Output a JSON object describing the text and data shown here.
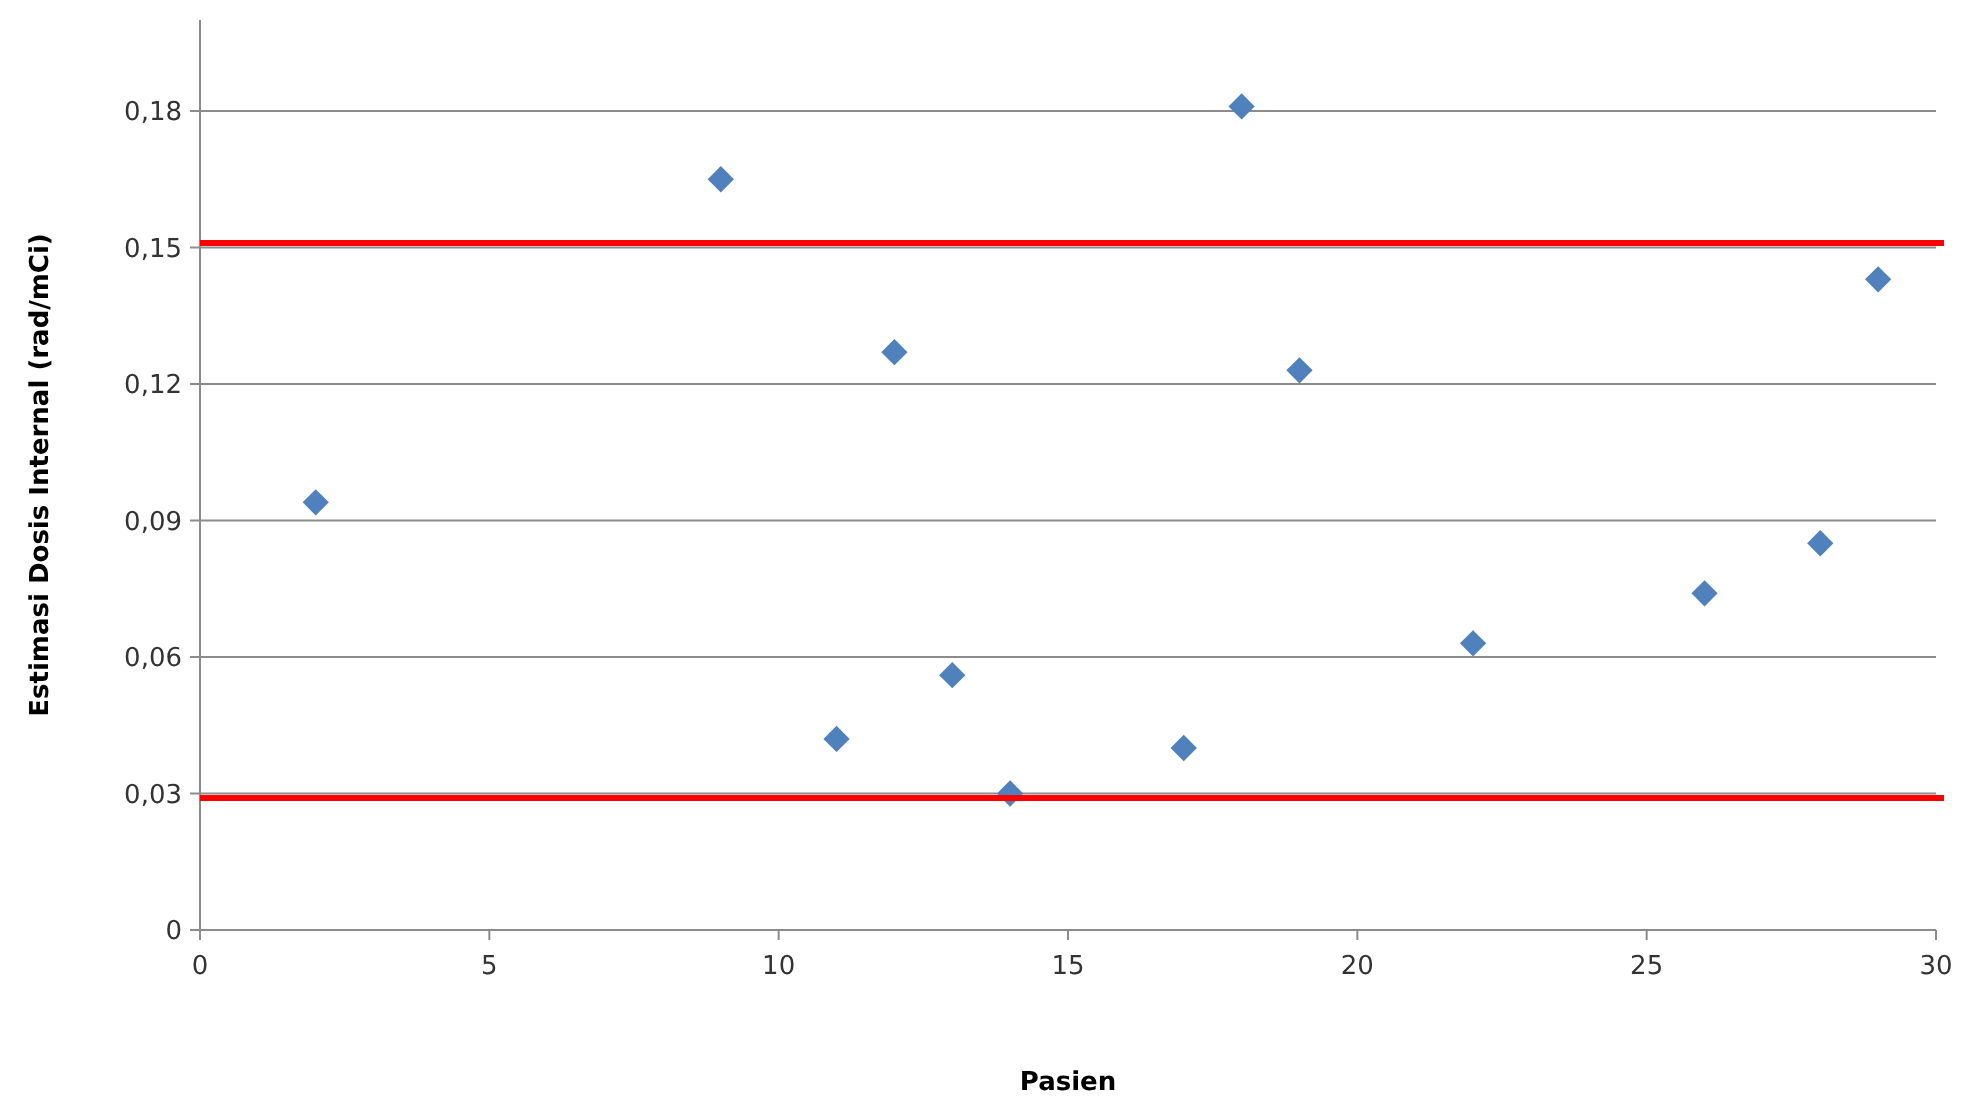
{
  "chart_data": {
    "type": "scatter",
    "xlabel": "Pasien",
    "ylabel": "Estimasi Dosis Internal (rad/mCi)",
    "x": [
      2,
      9,
      11,
      12,
      13,
      14,
      17,
      18,
      19,
      22,
      26,
      28,
      29
    ],
    "series": [
      {
        "color": "#4f81bd",
        "values": [
          0.094,
          0.165,
          0.042,
          0.127,
          0.056,
          0.03,
          0.04,
          0.181,
          0.123,
          0.063,
          0.074,
          0.085,
          0.143
        ]
      }
    ],
    "marker": "diamond",
    "grid": "y",
    "xlim": [
      0,
      30
    ],
    "xticks": [
      0,
      5,
      10,
      15,
      20,
      25,
      30
    ],
    "ylim": [
      0,
      0.2
    ],
    "yticks": [
      {
        "value": 0,
        "label": "0"
      },
      {
        "value": 0.03,
        "label": "0,03"
      },
      {
        "value": 0.06,
        "label": "0,06"
      },
      {
        "value": 0.09,
        "label": "0,09"
      },
      {
        "value": 0.12,
        "label": "0,12"
      },
      {
        "value": 0.15,
        "label": "0,15"
      },
      {
        "value": 0.18,
        "label": "0,18"
      }
    ],
    "ref_lines": [
      {
        "axis": "y",
        "value": 0.151,
        "color": "#ff0000"
      },
      {
        "axis": "y",
        "value": 0.029,
        "color": "#ff0000"
      }
    ]
  }
}
